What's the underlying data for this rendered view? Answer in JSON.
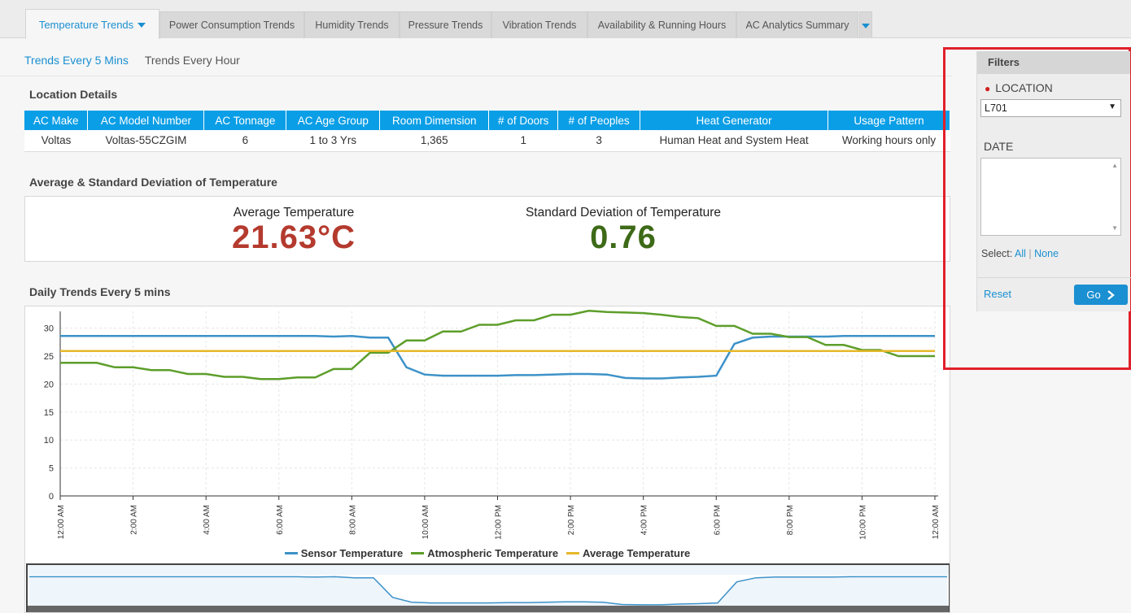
{
  "tabs": [
    {
      "label": "Temperature Trends",
      "active": true
    },
    {
      "label": "Power Consumption Trends"
    },
    {
      "label": "Humidity Trends"
    },
    {
      "label": "Pressure Trends"
    },
    {
      "label": "Vibration Trends"
    },
    {
      "label": "Availability & Running Hours"
    },
    {
      "label": "AC Analytics Summary"
    }
  ],
  "subtabs": [
    {
      "label": "Trends Every 5 Mins",
      "active": true
    },
    {
      "label": "Trends Every Hour"
    }
  ],
  "location": {
    "title": "Location Details",
    "columns": [
      "AC Make",
      "AC Model Number",
      "AC Tonnage",
      "AC Age Group",
      "Room Dimension",
      "# of Doors",
      "# of Peoples",
      "Heat Generator",
      "Usage Pattern"
    ],
    "row": [
      "Voltas",
      "Voltas-55CZGIM",
      "6",
      "1 to 3 Yrs",
      "1,365",
      "1",
      "3",
      "Human Heat and System Heat",
      "Working hours only"
    ]
  },
  "stats": {
    "title": "Average & Standard Deviation of Temperature",
    "avg_label": "Average Temperature",
    "avg_value": "21.63°C",
    "std_label": "Standard Deviation of Temperature",
    "std_value": "0.76",
    "avg_color": "#b43a2e",
    "std_color": "#3d6a17"
  },
  "chart_title": "Daily Trends Every 5 mins",
  "chart_data": {
    "type": "line",
    "x": [
      "12:00 AM",
      "12:30 AM",
      "1:00 AM",
      "1:30 AM",
      "2:00 AM",
      "2:30 AM",
      "3:00 AM",
      "3:30 AM",
      "4:00 AM",
      "4:30 AM",
      "5:00 AM",
      "5:30 AM",
      "6:00 AM",
      "6:30 AM",
      "7:00 AM",
      "7:30 AM",
      "8:00 AM",
      "8:30 AM",
      "9:00 AM",
      "9:30 AM",
      "10:00 AM",
      "10:30 AM",
      "11:00 AM",
      "11:30 AM",
      "12:00 PM",
      "12:30 PM",
      "1:00 PM",
      "1:30 PM",
      "2:00 PM",
      "2:30 PM",
      "3:00 PM",
      "3:30 PM",
      "4:00 PM",
      "4:30 PM",
      "5:00 PM",
      "5:30 PM",
      "6:00 PM",
      "6:30 PM",
      "7:00 PM",
      "7:30 PM",
      "8:00 PM",
      "8:30 PM",
      "9:00 PM",
      "9:30 PM",
      "10:00 PM",
      "10:30 PM",
      "11:00 PM",
      "11:30 PM",
      "12:00 AM"
    ],
    "xticks": [
      "12:00 AM",
      "2:00 AM",
      "4:00 AM",
      "6:00 AM",
      "8:00 AM",
      "10:00 AM",
      "12:00 PM",
      "2:00 PM",
      "4:00 PM",
      "6:00 PM",
      "8:00 PM",
      "10:00 PM",
      "12:00 AM"
    ],
    "ylim": [
      0,
      33
    ],
    "yticks": [
      0,
      5,
      10,
      15,
      20,
      25,
      30
    ],
    "grid": true,
    "legend": "bottom",
    "series": [
      {
        "name": "Sensor Temperature",
        "color": "#3d92c8",
        "values": [
          28.6,
          28.6,
          28.6,
          28.6,
          28.6,
          28.6,
          28.6,
          28.6,
          28.6,
          28.6,
          28.6,
          28.6,
          28.6,
          28.6,
          28.6,
          28.5,
          28.6,
          28.3,
          28.3,
          23.0,
          21.7,
          21.5,
          21.5,
          21.5,
          21.5,
          21.6,
          21.6,
          21.7,
          21.8,
          21.8,
          21.7,
          21.1,
          21.0,
          21.0,
          21.2,
          21.3,
          21.5,
          27.2,
          28.3,
          28.5,
          28.5,
          28.5,
          28.5,
          28.6,
          28.6,
          28.6,
          28.6,
          28.6,
          28.6
        ]
      },
      {
        "name": "Atmospheric Temperature",
        "color": "#5d9e2a",
        "values": [
          23.8,
          23.8,
          23.8,
          23.0,
          23.0,
          22.5,
          22.5,
          21.8,
          21.8,
          21.3,
          21.3,
          20.9,
          20.9,
          21.2,
          21.2,
          22.7,
          22.7,
          25.6,
          25.6,
          27.8,
          27.8,
          29.4,
          29.4,
          30.6,
          30.6,
          31.4,
          31.4,
          32.4,
          32.4,
          33.1,
          32.9,
          32.8,
          32.7,
          32.4,
          32.0,
          31.8,
          30.4,
          30.4,
          29.0,
          29.0,
          28.4,
          28.4,
          27.0,
          27.0,
          26.1,
          26.1,
          25.0,
          25.0,
          25.0
        ]
      },
      {
        "name": "Average Temperature",
        "color": "#e6b82a",
        "values": [
          25.9,
          25.9,
          25.9,
          25.9,
          25.9,
          25.9,
          25.9,
          25.9,
          25.9,
          25.9,
          25.9,
          25.9,
          25.9,
          25.9,
          25.9,
          25.9,
          25.9,
          25.9,
          25.9,
          25.9,
          25.9,
          25.9,
          25.9,
          25.9,
          25.9,
          25.9,
          25.9,
          25.9,
          25.9,
          25.9,
          25.9,
          25.9,
          25.9,
          25.9,
          25.9,
          25.9,
          25.9,
          25.9,
          25.9,
          25.9,
          25.9,
          25.9,
          25.9,
          25.9,
          25.9,
          25.9,
          25.9,
          25.9,
          25.9
        ]
      }
    ]
  },
  "filters": {
    "title": "Filters",
    "location_label": "LOCATION",
    "location_value": "L701",
    "date_label": "DATE",
    "select_label": "Select:",
    "select_all": "All",
    "select_none": "None",
    "reset": "Reset",
    "go": "Go"
  }
}
